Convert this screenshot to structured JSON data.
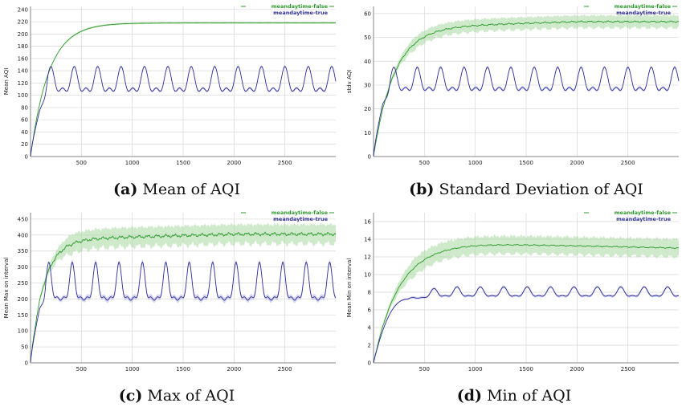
{
  "colors": {
    "false": "#2e9a2e",
    "band_false": "#a8d9a0",
    "true": "#2f2f96",
    "band_true": "#b6b6e6",
    "grid": "#d8d8d8"
  },
  "chart_data": [
    {
      "type": "line",
      "caption_letter": "(a)",
      "caption_text": "Mean of AQI",
      "title": "",
      "xlabel": "",
      "ylabel": "Mean AQI",
      "xlim": [
        0,
        3000
      ],
      "ylim": [
        0,
        245
      ],
      "x_ticks": [
        500,
        1000,
        1500,
        2000,
        2500
      ],
      "y_ticks": [
        0,
        20,
        40,
        60,
        80,
        100,
        120,
        140,
        160,
        180,
        200,
        220,
        240
      ],
      "legend_position": "top-right",
      "series": [
        {
          "name": "meandaytime-false",
          "key": "false",
          "model": {
            "kind": "sat",
            "start": 0,
            "plateau": 218,
            "tau": 180,
            "band": 1.5,
            "drift": 0,
            "noise": 0
          }
        },
        {
          "name": "meandaytime-true",
          "key": "true",
          "model": {
            "kind": "osc",
            "rise_end": 90,
            "rise_to": 75,
            "center": 120,
            "amp": 27,
            "period": 230,
            "peak_t": 200,
            "band": 2
          }
        }
      ]
    },
    {
      "type": "line",
      "caption_letter": "(b)",
      "caption_text": "Standard Deviation of AQI",
      "title": "",
      "xlabel": "",
      "ylabel": "stdv AQI",
      "xlim": [
        0,
        3000
      ],
      "ylim": [
        0,
        63
      ],
      "x_ticks": [
        500,
        1000,
        1500,
        2000,
        2500
      ],
      "y_ticks": [
        0,
        10,
        20,
        30,
        40,
        50,
        60
      ],
      "legend_position": "top-right",
      "series": [
        {
          "name": "meandaytime-false",
          "key": "false",
          "model": {
            "kind": "sat",
            "start": 0,
            "plateau": 54,
            "tau": 200,
            "band": 2.6,
            "drift": 2.6,
            "noise": 0.4
          }
        },
        {
          "name": "meandaytime-true",
          "key": "true",
          "model": {
            "kind": "osc",
            "rise_end": 90,
            "rise_to": 22,
            "center": 31,
            "amp": 6.5,
            "period": 230,
            "peak_t": 200,
            "band": 0.6
          }
        }
      ]
    },
    {
      "type": "line",
      "caption_letter": "(c)",
      "caption_text": "Max of AQI",
      "title": "",
      "xlabel": "",
      "ylabel": "Mean Max on interval",
      "xlim": [
        0,
        3000
      ],
      "ylim": [
        0,
        470
      ],
      "x_ticks": [
        500,
        1000,
        1500,
        2000,
        2500
      ],
      "y_ticks": [
        0,
        50,
        100,
        150,
        200,
        250,
        300,
        350,
        400,
        450
      ],
      "legend_position": "top-right",
      "series": [
        {
          "name": "meandaytime-false",
          "key": "false",
          "model": {
            "kind": "sat",
            "start": 0,
            "plateau": 385,
            "tau": 130,
            "band": 30,
            "drift": 18,
            "noise": 6
          }
        },
        {
          "name": "meandaytime-true",
          "key": "true",
          "model": {
            "kind": "spiky",
            "rise_end": 90,
            "rise_to": 170,
            "center": 230,
            "amp": 85,
            "period": 230,
            "peak_t": 180,
            "band": 8
          }
        }
      ]
    },
    {
      "type": "line",
      "caption_letter": "(d)",
      "caption_text": "Min of AQI",
      "title": "",
      "xlabel": "",
      "ylabel": "Mean Min on interval",
      "xlim": [
        0,
        3000
      ],
      "ylim": [
        0,
        17
      ],
      "x_ticks": [
        500,
        1000,
        1500,
        2000,
        2500
      ],
      "y_ticks": [
        0,
        2,
        4,
        6,
        8,
        10,
        12,
        14,
        16
      ],
      "legend_position": "top-right",
      "series": [
        {
          "name": "meandaytime-false",
          "key": "false",
          "model": {
            "kind": "hump",
            "start": 0,
            "plateau": 13.5,
            "tau": 250,
            "band": 1.0,
            "drift": -0.5,
            "noise": 0.08
          }
        },
        {
          "name": "meandaytime-true",
          "key": "true",
          "model": {
            "kind": "minosc",
            "rise_end": 330,
            "rise_to": 7.2,
            "center": 7.9,
            "amp": 0.7,
            "period": 460,
            "peak_t": 1050,
            "band": 0.15
          }
        }
      ]
    }
  ]
}
